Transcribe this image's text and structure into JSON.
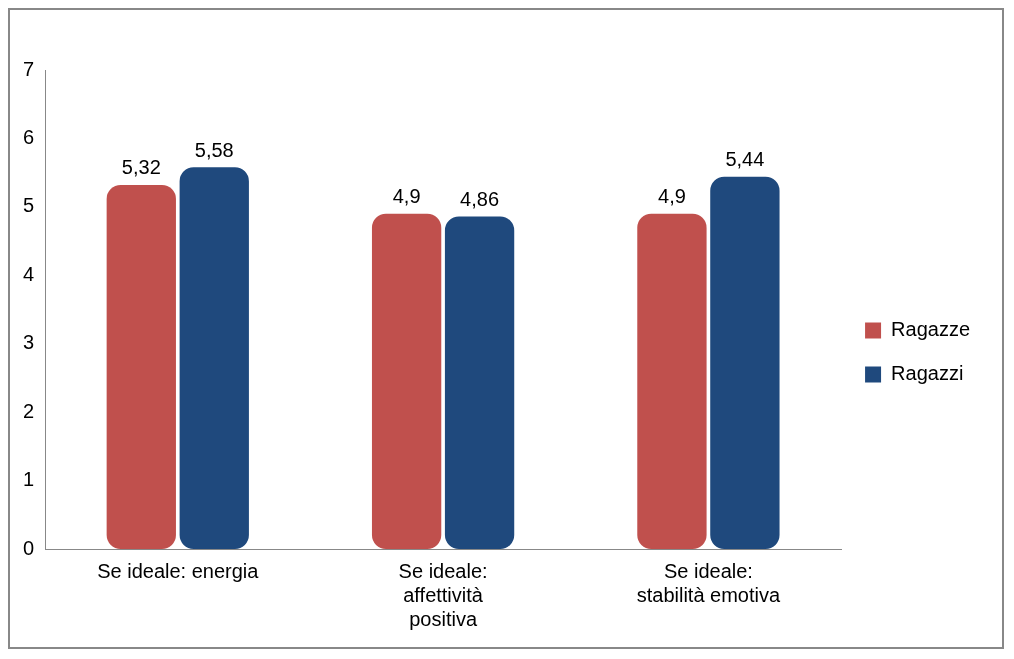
{
  "chart_data": {
    "type": "bar",
    "categories": [
      "Se ideale: energia",
      "Se ideale: affettività positiva",
      "Se ideale: stabilità emotiva"
    ],
    "series": [
      {
        "name": "Ragazze",
        "color": "#c0504d",
        "values": [
          5.32,
          4.9,
          4.9
        ],
        "value_labels": [
          "5,32",
          "4,9",
          "4,9"
        ]
      },
      {
        "name": "Ragazzi",
        "color": "#1f497d",
        "values": [
          5.58,
          4.86,
          5.44
        ],
        "value_labels": [
          "5,58",
          "4,86",
          "5,44"
        ]
      }
    ],
    "ylim": [
      0,
      7
    ],
    "yticks": [
      0,
      1,
      2,
      3,
      4,
      5,
      6,
      7
    ],
    "grid": false,
    "legend": "right"
  }
}
